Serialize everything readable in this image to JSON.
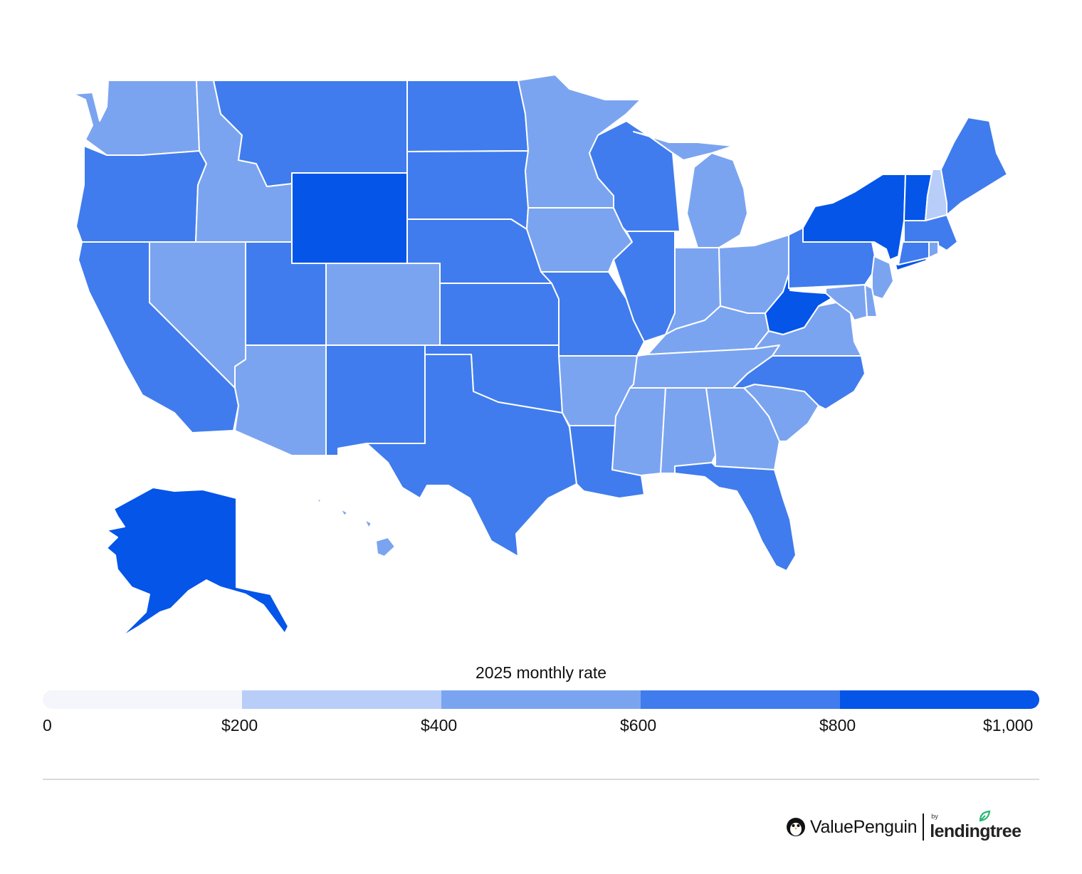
{
  "legend": {
    "title": "2025 monthly rate",
    "bins": [
      {
        "min": 0,
        "max": 200,
        "color": "#f5f6fb"
      },
      {
        "min": 200,
        "max": 400,
        "color": "#b8cdf8"
      },
      {
        "min": 400,
        "max": 600,
        "color": "#7ba4f0"
      },
      {
        "min": 600,
        "max": 800,
        "color": "#407ced"
      },
      {
        "min": 800,
        "max": 1000,
        "color": "#0455e8"
      }
    ],
    "ticks": [
      "0",
      "$200",
      "$400",
      "$600",
      "$800",
      "$1,000"
    ]
  },
  "map_data": {
    "type": "choropleth",
    "region": "United States",
    "metric": "2025 monthly rate",
    "states": [
      {
        "state": "WA",
        "bin": "$400–$600"
      },
      {
        "state": "OR",
        "bin": "$600–$800"
      },
      {
        "state": "CA",
        "bin": "$600–$800"
      },
      {
        "state": "NV",
        "bin": "$400–$600"
      },
      {
        "state": "ID",
        "bin": "$400–$600"
      },
      {
        "state": "MT",
        "bin": "$600–$800"
      },
      {
        "state": "WY",
        "bin": "$800–$1,000"
      },
      {
        "state": "UT",
        "bin": "$600–$800"
      },
      {
        "state": "AZ",
        "bin": "$400–$600"
      },
      {
        "state": "CO",
        "bin": "$400–$600"
      },
      {
        "state": "NM",
        "bin": "$600–$800"
      },
      {
        "state": "ND",
        "bin": "$600–$800"
      },
      {
        "state": "SD",
        "bin": "$600–$800"
      },
      {
        "state": "NE",
        "bin": "$600–$800"
      },
      {
        "state": "KS",
        "bin": "$600–$800"
      },
      {
        "state": "OK",
        "bin": "$600–$800"
      },
      {
        "state": "TX",
        "bin": "$600–$800"
      },
      {
        "state": "MN",
        "bin": "$400–$600"
      },
      {
        "state": "IA",
        "bin": "$400–$600"
      },
      {
        "state": "MO",
        "bin": "$600–$800"
      },
      {
        "state": "AR",
        "bin": "$400–$600"
      },
      {
        "state": "LA",
        "bin": "$600–$800"
      },
      {
        "state": "WI",
        "bin": "$600–$800"
      },
      {
        "state": "IL",
        "bin": "$600–$800"
      },
      {
        "state": "MI",
        "bin": "$400–$600"
      },
      {
        "state": "IN",
        "bin": "$400–$600"
      },
      {
        "state": "OH",
        "bin": "$400–$600"
      },
      {
        "state": "KY",
        "bin": "$400–$600"
      },
      {
        "state": "TN",
        "bin": "$400–$600"
      },
      {
        "state": "MS",
        "bin": "$400–$600"
      },
      {
        "state": "AL",
        "bin": "$400–$600"
      },
      {
        "state": "GA",
        "bin": "$400–$600"
      },
      {
        "state": "FL",
        "bin": "$600–$800"
      },
      {
        "state": "SC",
        "bin": "$400–$600"
      },
      {
        "state": "NC",
        "bin": "$600–$800"
      },
      {
        "state": "VA",
        "bin": "$400–$600"
      },
      {
        "state": "WV",
        "bin": "$800–$1,000"
      },
      {
        "state": "PA",
        "bin": "$600–$800"
      },
      {
        "state": "NY",
        "bin": "$800–$1,000"
      },
      {
        "state": "VT",
        "bin": "$800–$1,000"
      },
      {
        "state": "NH",
        "bin": "$200–$400"
      },
      {
        "state": "ME",
        "bin": "$600–$800"
      },
      {
        "state": "MA",
        "bin": "$600–$800"
      },
      {
        "state": "RI",
        "bin": "$400–$600"
      },
      {
        "state": "CT",
        "bin": "$600–$800"
      },
      {
        "state": "NJ",
        "bin": "$400–$600"
      },
      {
        "state": "DE",
        "bin": "$400–$600"
      },
      {
        "state": "MD",
        "bin": "$400–$600"
      },
      {
        "state": "AK",
        "bin": "$800–$1,000"
      },
      {
        "state": "HI",
        "bin": "$400–$600"
      }
    ]
  },
  "brand": {
    "name": "ValuePenguin",
    "by": "by",
    "partner": "lendingtree"
  }
}
